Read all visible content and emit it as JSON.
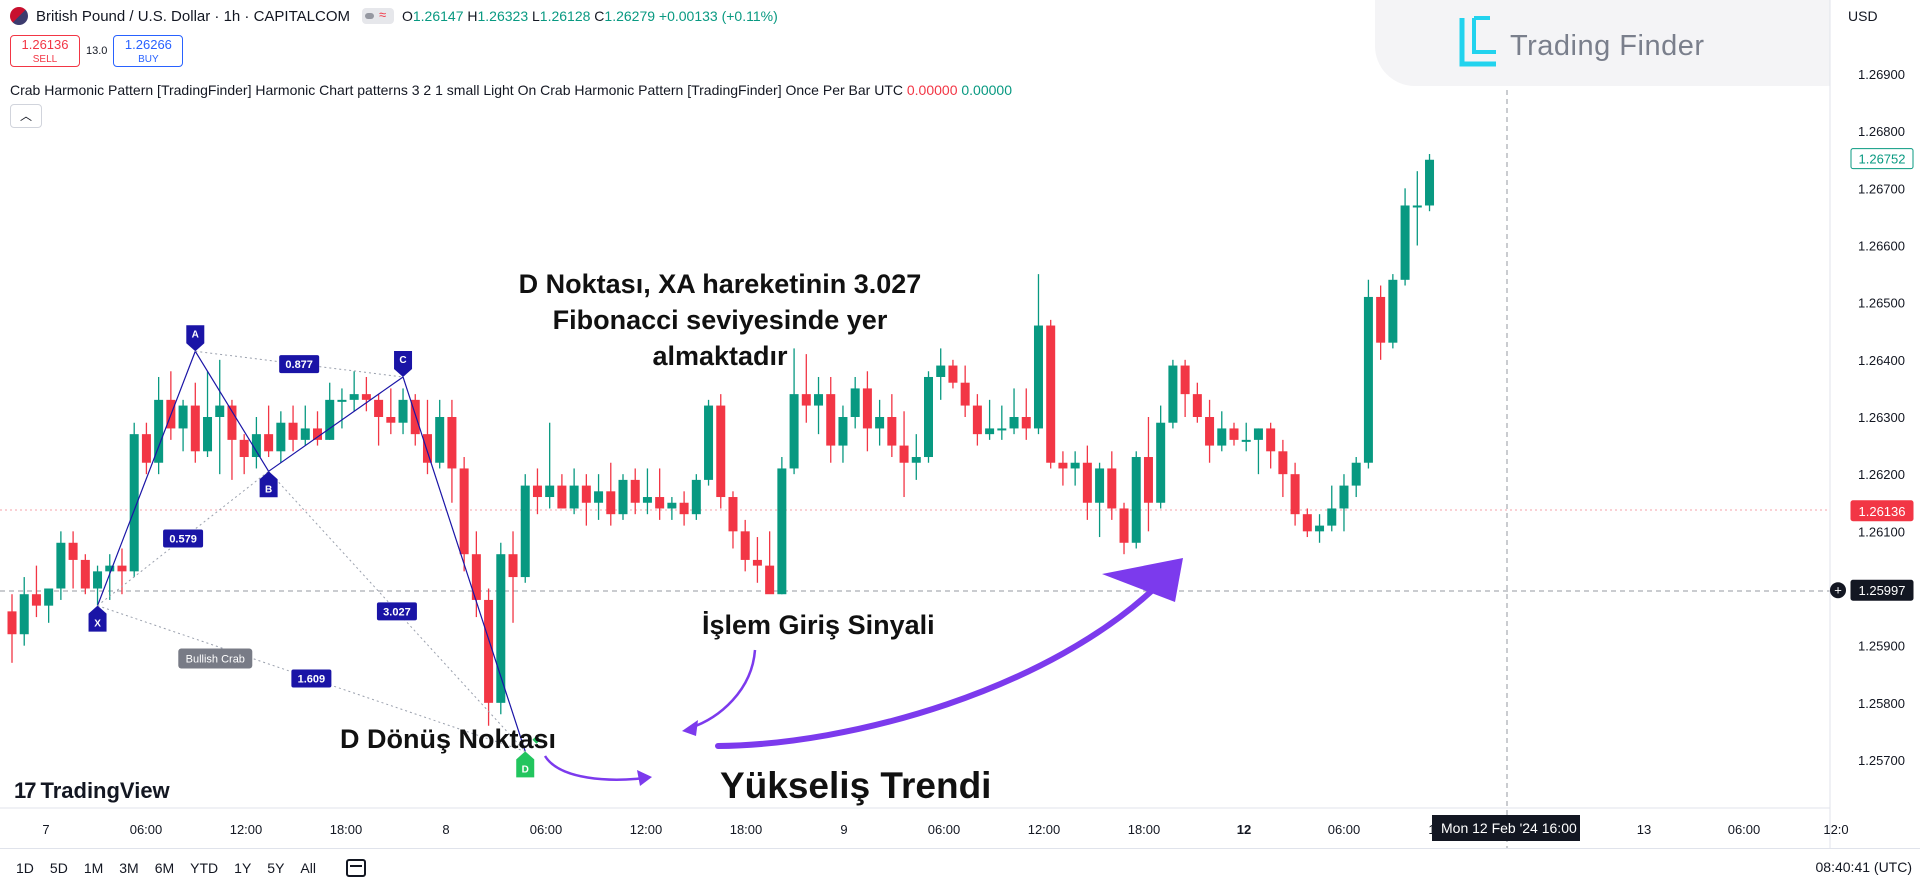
{
  "header": {
    "symbol_title": "British Pound / U.S. Dollar · 1h · CAPITALCOM",
    "ohlc": {
      "o": "1.26147",
      "h": "1.26323",
      "l": "1.26128",
      "c": "1.26279",
      "change": "+0.00133 (+0.11%)"
    },
    "sell": {
      "price": "1.26136",
      "label": "SELL"
    },
    "buy": {
      "price": "1.26266",
      "label": "BUY"
    },
    "spread": "13.0",
    "indicator": {
      "text": "Crab Harmonic Pattern [TradingFinder] Harmonic Chart patterns 3 2 1 small Light On Crab Harmonic Pattern [TradingFinder] Once Per Bar UTC",
      "v1": "0.00000",
      "v2": "0.00000"
    },
    "collapse_icon": "chevron-up-icon"
  },
  "watermark": {
    "text": "Trading Finder"
  },
  "currency": "USD",
  "annotations": {
    "d_fib_lines": [
      "D Noktası, XA hareketinin 3.027",
      "Fibonacci seviyesinde yer",
      "almaktadır"
    ],
    "signal": "İşlem Giriş Sinyali",
    "reversal": "D Dönüş Noktası",
    "trend": "Yükseliş Trendi"
  },
  "tv_logo": {
    "mark": "17",
    "text": "TradingView"
  },
  "bottom": {
    "ranges": [
      "1D",
      "5D",
      "1M",
      "3M",
      "6M",
      "YTD",
      "1Y",
      "5Y",
      "All"
    ],
    "clock": "08:40:41 (UTC)"
  },
  "colors": {
    "up": "#089981",
    "down": "#f23645",
    "pattern": "#1a14a6",
    "arrow": "#7c3aed"
  },
  "chart_data": {
    "type": "candlestick",
    "yaxis": {
      "ticks": [
        "1.26900",
        "1.26800",
        "1.26700",
        "1.26600",
        "1.26500",
        "1.26400",
        "1.26300",
        "1.26200",
        "1.26100",
        "1.26000",
        "1.25900",
        "1.25800",
        "1.25700"
      ],
      "range": [
        1.2565,
        1.2695
      ],
      "price_labels": [
        {
          "value": "1.26752",
          "role": "last-price"
        },
        {
          "value": "1.26136",
          "role": "bid"
        },
        {
          "value": "1.25997",
          "role": "crosshair"
        }
      ]
    },
    "xaxis": {
      "labels": [
        "7",
        "06:00",
        "12:00",
        "18:00",
        "8",
        "06:00",
        "12:00",
        "18:00",
        "9",
        "06:00",
        "12:00",
        "18:00",
        "12",
        "06:00",
        "1",
        "13",
        "06:00",
        "12:0"
      ],
      "crosshair_label": "Mon 12 Feb '24   16:00"
    },
    "candles": [
      [
        1.2596,
        1.2599,
        1.2587,
        1.2592
      ],
      [
        1.2592,
        1.2602,
        1.259,
        1.2599
      ],
      [
        1.2599,
        1.2604,
        1.2595,
        1.2597
      ],
      [
        1.2597,
        1.26,
        1.2594,
        1.26
      ],
      [
        1.26,
        1.261,
        1.2598,
        1.2608
      ],
      [
        1.2608,
        1.261,
        1.26,
        1.2605
      ],
      [
        1.2605,
        1.2606,
        1.2599,
        1.26
      ],
      [
        1.26,
        1.2604,
        1.2597,
        1.2603
      ],
      [
        1.2603,
        1.2606,
        1.2598,
        1.2604
      ],
      [
        1.2604,
        1.2607,
        1.2599,
        1.2603
      ],
      [
        1.2603,
        1.2629,
        1.2602,
        1.2627
      ],
      [
        1.2627,
        1.2629,
        1.262,
        1.2622
      ],
      [
        1.2622,
        1.2637,
        1.262,
        1.2633
      ],
      [
        1.2633,
        1.2638,
        1.2626,
        1.2628
      ],
      [
        1.2628,
        1.2633,
        1.2624,
        1.2632
      ],
      [
        1.2632,
        1.2636,
        1.2622,
        1.2624
      ],
      [
        1.2624,
        1.2638,
        1.2623,
        1.263
      ],
      [
        1.263,
        1.264,
        1.262,
        1.2632
      ],
      [
        1.2632,
        1.2633,
        1.2619,
        1.2626
      ],
      [
        1.2626,
        1.2627,
        1.262,
        1.2623
      ],
      [
        1.2623,
        1.263,
        1.2621,
        1.2627
      ],
      [
        1.2627,
        1.2632,
        1.2623,
        1.2624
      ],
      [
        1.2624,
        1.2631,
        1.2622,
        1.2629
      ],
      [
        1.2629,
        1.2632,
        1.2624,
        1.2626
      ],
      [
        1.2626,
        1.2632,
        1.2625,
        1.2628
      ],
      [
        1.2628,
        1.2631,
        1.2625,
        1.2626
      ],
      [
        1.2626,
        1.2636,
        1.2626,
        1.2633
      ],
      [
        1.2633,
        1.2635,
        1.2628,
        1.2633
      ],
      [
        1.2633,
        1.2638,
        1.2631,
        1.2634
      ],
      [
        1.2634,
        1.2637,
        1.2631,
        1.2633
      ],
      [
        1.2633,
        1.2634,
        1.2625,
        1.263
      ],
      [
        1.263,
        1.2635,
        1.2627,
        1.2629
      ],
      [
        1.2629,
        1.2635,
        1.2627,
        1.2633
      ],
      [
        1.2633,
        1.2634,
        1.2625,
        1.2627
      ],
      [
        1.2627,
        1.2633,
        1.262,
        1.2622
      ],
      [
        1.2622,
        1.2633,
        1.2621,
        1.263
      ],
      [
        1.263,
        1.2633,
        1.2615,
        1.2621
      ],
      [
        1.2621,
        1.2623,
        1.2603,
        1.2606
      ],
      [
        1.2606,
        1.261,
        1.2595,
        1.2598
      ],
      [
        1.2598,
        1.26,
        1.2576,
        1.258
      ],
      [
        1.258,
        1.2608,
        1.2578,
        1.2606
      ],
      [
        1.2606,
        1.261,
        1.2594,
        1.2602
      ],
      [
        1.2602,
        1.262,
        1.2601,
        1.2618
      ],
      [
        1.2618,
        1.2621,
        1.2613,
        1.2616
      ],
      [
        1.2616,
        1.2629,
        1.2614,
        1.2618
      ],
      [
        1.2618,
        1.262,
        1.2614,
        1.2614
      ],
      [
        1.2614,
        1.2621,
        1.2613,
        1.2618
      ],
      [
        1.2618,
        1.262,
        1.2611,
        1.2615
      ],
      [
        1.2615,
        1.262,
        1.2612,
        1.2617
      ],
      [
        1.2617,
        1.2622,
        1.2611,
        1.2613
      ],
      [
        1.2613,
        1.262,
        1.2612,
        1.2619
      ],
      [
        1.2619,
        1.2621,
        1.2613,
        1.2615
      ],
      [
        1.2615,
        1.2621,
        1.2613,
        1.2616
      ],
      [
        1.2616,
        1.2621,
        1.2612,
        1.2614
      ],
      [
        1.2614,
        1.2616,
        1.2612,
        1.2615
      ],
      [
        1.2615,
        1.2617,
        1.2611,
        1.2613
      ],
      [
        1.2613,
        1.262,
        1.2612,
        1.2619
      ],
      [
        1.2619,
        1.2633,
        1.2618,
        1.2632
      ],
      [
        1.2632,
        1.2634,
        1.2614,
        1.2616
      ],
      [
        1.2616,
        1.2617,
        1.2607,
        1.261
      ],
      [
        1.261,
        1.2612,
        1.2603,
        1.2605
      ],
      [
        1.2605,
        1.2609,
        1.2601,
        1.2604
      ],
      [
        1.2604,
        1.261,
        1.26,
        1.2599
      ],
      [
        1.2599,
        1.2623,
        1.2599,
        1.2621
      ],
      [
        1.2621,
        1.2642,
        1.262,
        1.2634
      ],
      [
        1.2634,
        1.2641,
        1.2629,
        1.2632
      ],
      [
        1.2632,
        1.2637,
        1.2627,
        1.2634
      ],
      [
        1.2634,
        1.2637,
        1.2622,
        1.2625
      ],
      [
        1.2625,
        1.2632,
        1.2622,
        1.263
      ],
      [
        1.263,
        1.2637,
        1.2628,
        1.2635
      ],
      [
        1.2635,
        1.2638,
        1.2624,
        1.2628
      ],
      [
        1.2628,
        1.2633,
        1.2625,
        1.263
      ],
      [
        1.263,
        1.2634,
        1.2623,
        1.2625
      ],
      [
        1.2625,
        1.2631,
        1.2616,
        1.2622
      ],
      [
        1.2622,
        1.2627,
        1.2619,
        1.2623
      ],
      [
        1.2623,
        1.2638,
        1.2622,
        1.2637
      ],
      [
        1.2637,
        1.2642,
        1.2633,
        1.2639
      ],
      [
        1.2639,
        1.264,
        1.2635,
        1.2636
      ],
      [
        1.2636,
        1.2639,
        1.263,
        1.2632
      ],
      [
        1.2632,
        1.2634,
        1.2625,
        1.2627
      ],
      [
        1.2627,
        1.2633,
        1.2626,
        1.2628
      ],
      [
        1.2628,
        1.2632,
        1.2626,
        1.2628
      ],
      [
        1.2628,
        1.2635,
        1.2627,
        1.263
      ],
      [
        1.263,
        1.2635,
        1.2626,
        1.2628
      ],
      [
        1.2628,
        1.2655,
        1.2627,
        1.2646
      ],
      [
        1.2646,
        1.2647,
        1.2621,
        1.2622
      ],
      [
        1.2622,
        1.2624,
        1.2618,
        1.2621
      ],
      [
        1.2621,
        1.2624,
        1.2618,
        1.2622
      ],
      [
        1.2622,
        1.2625,
        1.2612,
        1.2615
      ],
      [
        1.2615,
        1.2622,
        1.2609,
        1.2621
      ],
      [
        1.2621,
        1.2624,
        1.2612,
        1.2614
      ],
      [
        1.2614,
        1.2615,
        1.2606,
        1.2608
      ],
      [
        1.2608,
        1.2624,
        1.2607,
        1.2623
      ],
      [
        1.2623,
        1.263,
        1.261,
        1.2615
      ],
      [
        1.2615,
        1.2632,
        1.2614,
        1.2629
      ],
      [
        1.2629,
        1.264,
        1.2628,
        1.2639
      ],
      [
        1.2639,
        1.264,
        1.263,
        1.2634
      ],
      [
        1.2634,
        1.2636,
        1.2629,
        1.263
      ],
      [
        1.263,
        1.2633,
        1.2622,
        1.2625
      ],
      [
        1.2625,
        1.2631,
        1.2624,
        1.2628
      ],
      [
        1.2628,
        1.2629,
        1.2625,
        1.2626
      ],
      [
        1.2626,
        1.2629,
        1.2624,
        1.2626
      ],
      [
        1.2626,
        1.2628,
        1.262,
        1.2628
      ],
      [
        1.2628,
        1.2629,
        1.2621,
        1.2624
      ],
      [
        1.2624,
        1.2626,
        1.2616,
        1.262
      ],
      [
        1.262,
        1.2622,
        1.2611,
        1.2613
      ],
      [
        1.2613,
        1.2614,
        1.2609,
        1.261
      ],
      [
        1.261,
        1.2613,
        1.2608,
        1.2611
      ],
      [
        1.2611,
        1.2618,
        1.261,
        1.2614
      ],
      [
        1.2614,
        1.262,
        1.261,
        1.2618
      ],
      [
        1.2618,
        1.2623,
        1.2616,
        1.2622
      ],
      [
        1.2622,
        1.2654,
        1.2621,
        1.2651
      ],
      [
        1.2651,
        1.2653,
        1.264,
        1.2643
      ],
      [
        1.2643,
        1.2655,
        1.2642,
        1.2654
      ],
      [
        1.2654,
        1.267,
        1.2653,
        1.2667
      ],
      [
        1.2667,
        1.2673,
        1.266,
        1.2667
      ],
      [
        1.2667,
        1.2676,
        1.2666,
        1.2675
      ]
    ],
    "harmonic_pattern": {
      "name": "Bullish Crab",
      "points": [
        {
          "label": "X",
          "index": 7,
          "price": 1.2597
        },
        {
          "label": "A",
          "index": 15,
          "price": 1.26415
        },
        {
          "label": "B",
          "index": 21,
          "price": 1.26205
        },
        {
          "label": "C",
          "index": 32,
          "price": 1.2637
        },
        {
          "label": "D",
          "index": 42,
          "price": 1.25715
        }
      ],
      "ratios": [
        {
          "value": "0.877",
          "between": "A-C"
        },
        {
          "value": "0.579",
          "between": "X-B"
        },
        {
          "value": "3.027",
          "between": "B-D"
        },
        {
          "value": "1.609",
          "between": "X-D"
        }
      ],
      "signal": {
        "index": 43,
        "price": 1.2576
      }
    }
  }
}
